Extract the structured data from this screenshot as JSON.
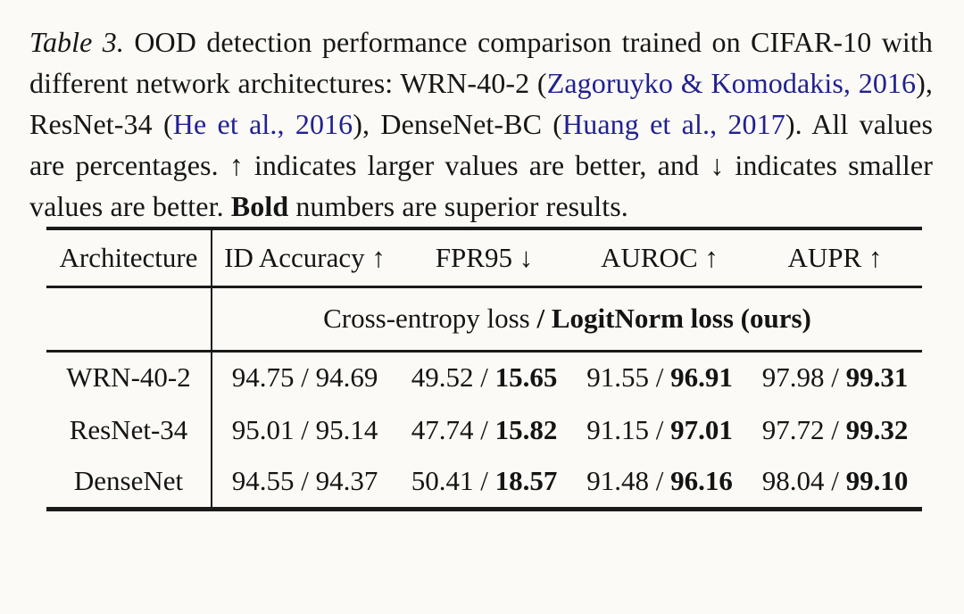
{
  "page": {
    "colors": {
      "background": "#fbfaf6",
      "text": "#161616",
      "link": "#21218f",
      "rule": "#1a1a1a"
    }
  },
  "caption": {
    "segments": [
      {
        "style": "italic",
        "text": "Table 3."
      },
      {
        "style": "normal",
        "text": " OOD detection performance comparison trained on CIFAR-10 with different network architectures: WRN-40-2 ("
      },
      {
        "style": "link",
        "text": "Zagoruyko & Komodakis, 2016"
      },
      {
        "style": "normal",
        "text": "), ResNet-34 ("
      },
      {
        "style": "link",
        "text": "He et al., 2016"
      },
      {
        "style": "normal",
        "text": "), DenseNet-BC ("
      },
      {
        "style": "link",
        "text": "Huang et al., 2017"
      },
      {
        "style": "normal",
        "text": "). All values are percentages. ↑ indicates larger values are better, and ↓ indicates smaller values are better. "
      },
      {
        "style": "bold",
        "text": "Bold"
      },
      {
        "style": "normal",
        "text": " numbers are superior results."
      }
    ]
  },
  "table": {
    "header": {
      "architecture": "Architecture",
      "columns": [
        "ID Accuracy ↑",
        "FPR95 ↓",
        "AUROC ↑",
        "AUPR ↑"
      ]
    },
    "subheader": {
      "normal": "Cross-entropy loss ",
      "bold": "/ LogitNorm loss (ours)"
    },
    "separator": " / ",
    "rows": [
      {
        "architecture": "WRN-40-2",
        "cells": [
          {
            "cross_entropy": "94.75",
            "logitnorm": "94.69",
            "logitnorm_bold": false
          },
          {
            "cross_entropy": "49.52",
            "logitnorm": "15.65",
            "logitnorm_bold": true
          },
          {
            "cross_entropy": "91.55",
            "logitnorm": "96.91",
            "logitnorm_bold": true
          },
          {
            "cross_entropy": "97.98",
            "logitnorm": "99.31",
            "logitnorm_bold": true
          }
        ]
      },
      {
        "architecture": "ResNet-34",
        "cells": [
          {
            "cross_entropy": "95.01",
            "logitnorm": "95.14",
            "logitnorm_bold": false
          },
          {
            "cross_entropy": "47.74",
            "logitnorm": "15.82",
            "logitnorm_bold": true
          },
          {
            "cross_entropy": "91.15",
            "logitnorm": "97.01",
            "logitnorm_bold": true
          },
          {
            "cross_entropy": "97.72",
            "logitnorm": "99.32",
            "logitnorm_bold": true
          }
        ]
      },
      {
        "architecture": "DenseNet",
        "cells": [
          {
            "cross_entropy": "94.55",
            "logitnorm": "94.37",
            "logitnorm_bold": false
          },
          {
            "cross_entropy": "50.41",
            "logitnorm": "18.57",
            "logitnorm_bold": true
          },
          {
            "cross_entropy": "91.48",
            "logitnorm": "96.16",
            "logitnorm_bold": true
          },
          {
            "cross_entropy": "98.04",
            "logitnorm": "99.10",
            "logitnorm_bold": true
          }
        ]
      }
    ]
  }
}
